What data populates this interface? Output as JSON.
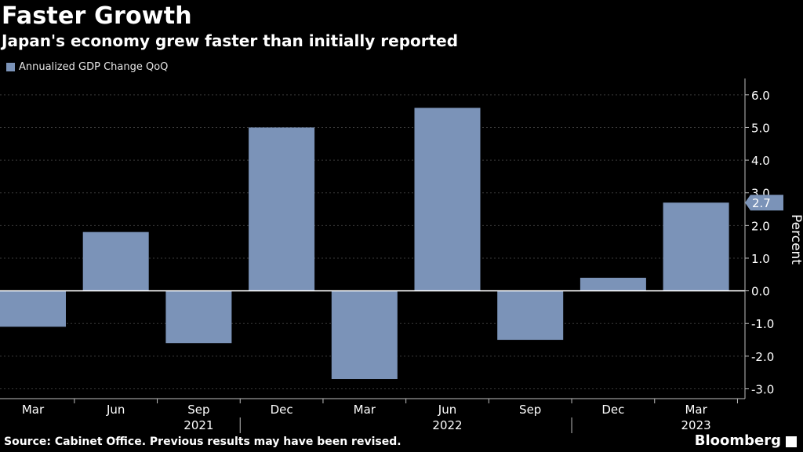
{
  "header": {
    "title": "Faster Growth",
    "subtitle": "Japan's economy grew faster than initially reported"
  },
  "footer": {
    "source": "Source: Cabinet Office. Previous results may have been revised.",
    "brand": "Bloomberg"
  },
  "colors": {
    "bar": "#7b93b8",
    "background": "#000000",
    "text": "#ffffff",
    "axis": "#bfbfbf"
  },
  "chart_data": {
    "type": "bar",
    "title": "Faster Growth",
    "subtitle": "Japan's economy grew faster than initially reported",
    "legend": [
      "Annualized GDP Change QoQ"
    ],
    "series": [
      {
        "name": "Annualized GDP Change QoQ",
        "values": [
          -1.1,
          1.8,
          -1.6,
          5.0,
          -2.7,
          5.6,
          -1.5,
          0.4,
          2.7
        ]
      }
    ],
    "categories": [
      "Mar",
      "Jun",
      "Sep",
      "Dec",
      "Mar",
      "Jun",
      "Sep",
      "Dec",
      "Mar"
    ],
    "year_labels": [
      {
        "label": "2021",
        "category_index": 2
      },
      {
        "label": "2022",
        "category_index": 5
      },
      {
        "label": "2023",
        "category_index": 8
      }
    ],
    "ylabel": "Percent",
    "ylim": [
      -3.3,
      6.5
    ],
    "yticks": [
      6.0,
      5.0,
      4.0,
      3.0,
      2.0,
      1.0,
      0.0,
      -1.0,
      -2.0,
      -3.0
    ],
    "ytick_labels": [
      "6.0",
      "5.0",
      "4.0",
      "3.0",
      "2.0",
      "1.0",
      "0.0",
      "-1.0",
      "-2.0",
      "-3.0"
    ],
    "highlight_label": "2.7",
    "grid": true
  }
}
